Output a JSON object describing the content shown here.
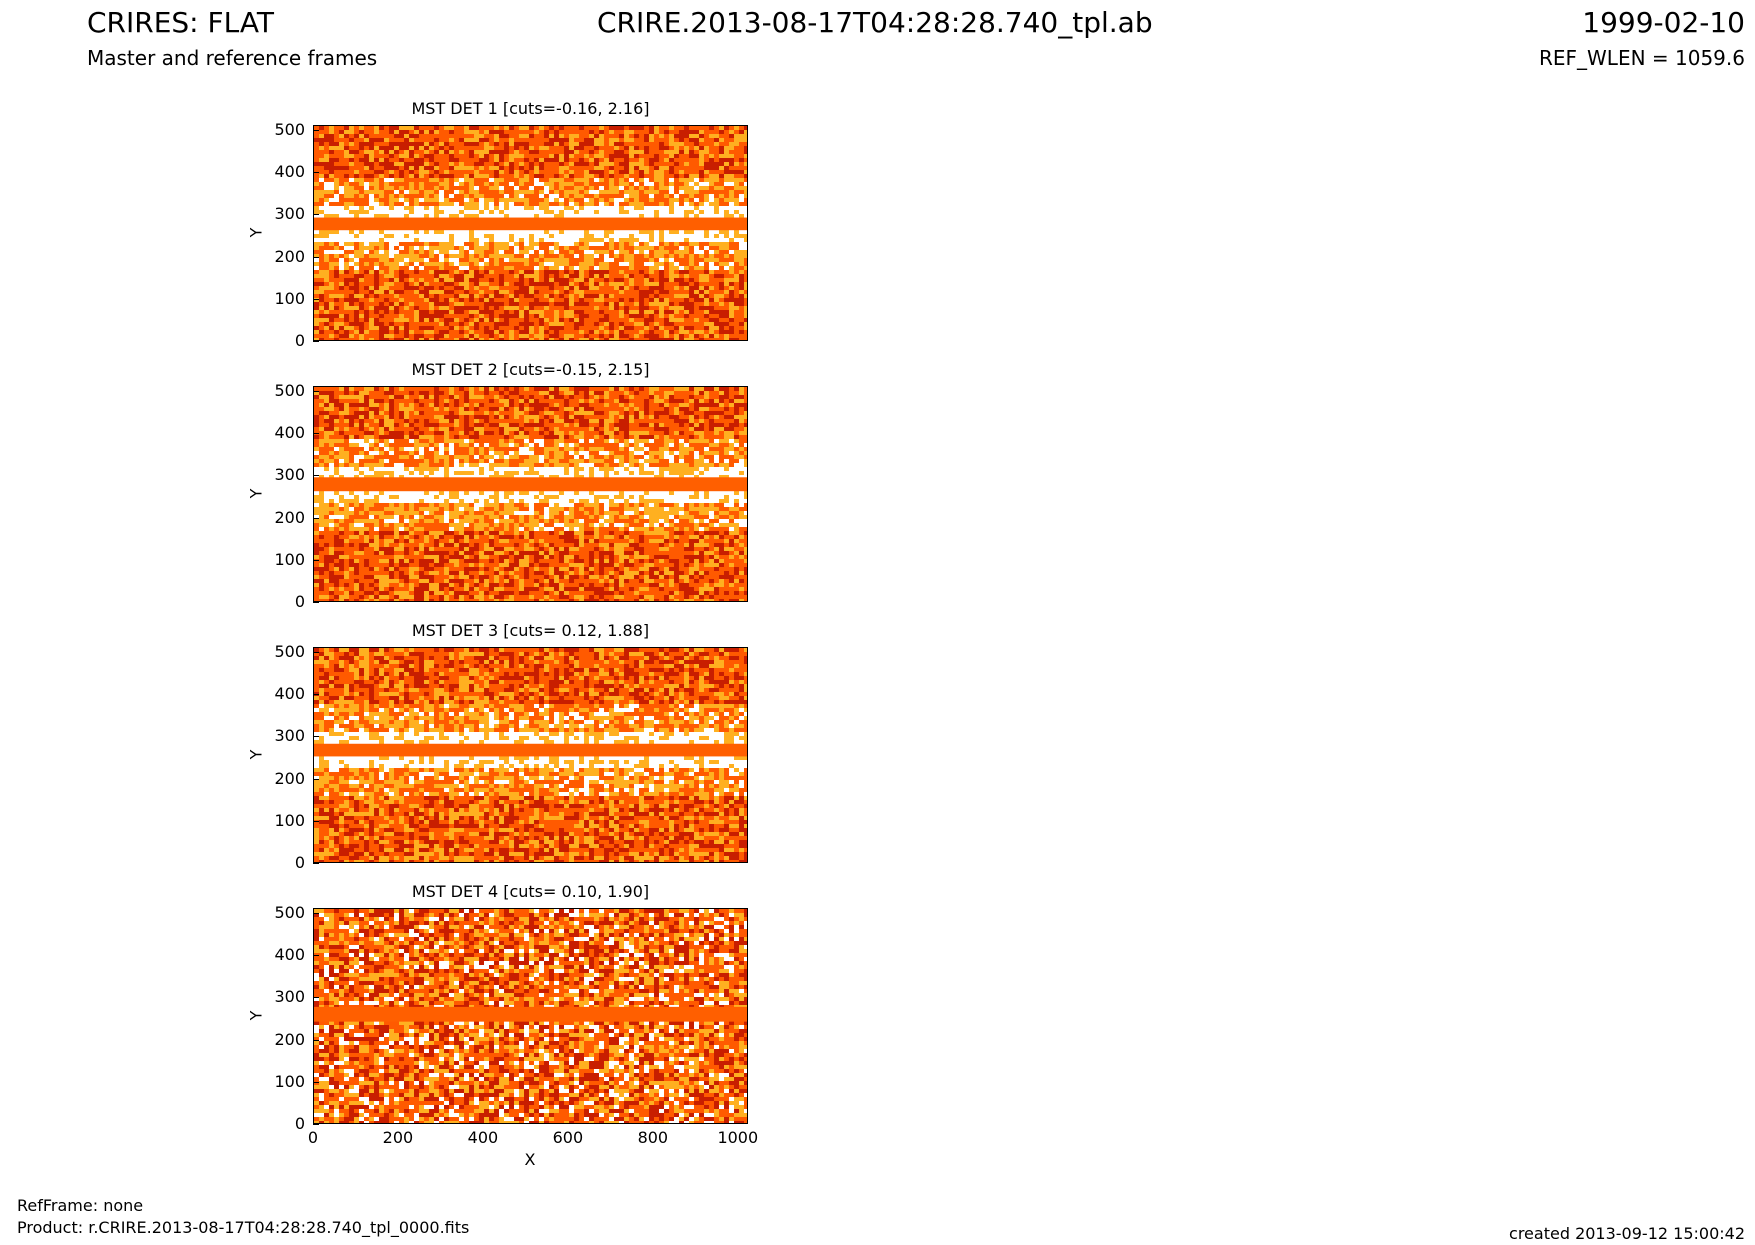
{
  "header": {
    "left_title": "CRIRES: FLAT",
    "left_subtitle": "Master and reference frames",
    "center_title": "CRIRE.2013-08-17T04:28:28.740_tpl.ab",
    "right_title": "1999-02-10",
    "right_subtitle": "REF_WLEN = 1059.6"
  },
  "footer": {
    "ref_frame": "RefFrame: none",
    "product": "Product: r.CRIRE.2013-08-17T04:28:28.740_tpl_0000.fits",
    "created": "created 2013-09-12 15:00:42"
  },
  "colors": {
    "dark": "#c81e00",
    "mid": "#ff5a00",
    "light": "#ffb020",
    "bright": "#ffffff",
    "band": "#ff5f00"
  },
  "chart_data": [
    {
      "type": "heatmap",
      "title": "MST DET 1 [cuts=-0.16, 2.16]",
      "ylabel": "Y",
      "xlabel": "",
      "xlim": [
        0,
        1024
      ],
      "ylim": [
        0,
        512
      ],
      "yticks": [
        0,
        100,
        200,
        300,
        400,
        500
      ],
      "xticks": [],
      "cuts": [
        -0.16,
        2.16
      ],
      "band_y": [
        265,
        295
      ]
    },
    {
      "type": "heatmap",
      "title": "MST DET 2 [cuts=-0.15, 2.15]",
      "ylabel": "Y",
      "xlabel": "",
      "xlim": [
        0,
        1024
      ],
      "ylim": [
        0,
        512
      ],
      "yticks": [
        0,
        100,
        200,
        300,
        400,
        500
      ],
      "xticks": [],
      "cuts": [
        -0.15,
        2.15
      ],
      "band_y": [
        265,
        298
      ]
    },
    {
      "type": "heatmap",
      "title": "MST DET 3 [cuts= 0.12, 1.88]",
      "ylabel": "Y",
      "xlabel": "",
      "xlim": [
        0,
        1024
      ],
      "ylim": [
        0,
        512
      ],
      "yticks": [
        0,
        100,
        200,
        300,
        400,
        500
      ],
      "xticks": [],
      "cuts": [
        0.12,
        1.88
      ],
      "band_y": [
        255,
        285
      ]
    },
    {
      "type": "heatmap",
      "title": "MST DET 4 [cuts= 0.10, 1.90]",
      "ylabel": "Y",
      "xlabel": "X",
      "xlim": [
        0,
        1024
      ],
      "ylim": [
        0,
        512
      ],
      "yticks": [
        0,
        100,
        200,
        300,
        400,
        500
      ],
      "xticks": [
        0,
        200,
        400,
        600,
        800,
        1000
      ],
      "cuts": [
        0.1,
        1.9
      ],
      "band_y": [
        245,
        280
      ]
    }
  ]
}
